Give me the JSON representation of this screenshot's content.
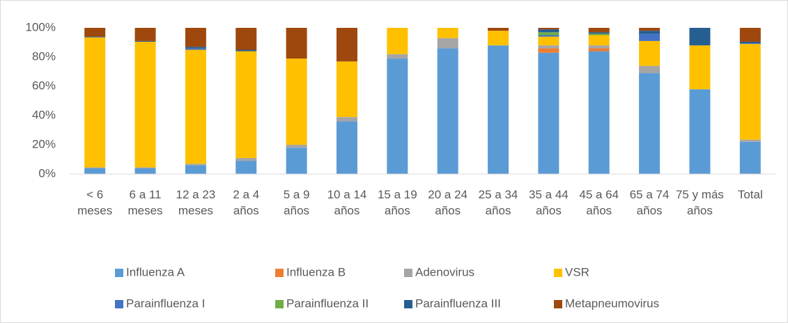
{
  "chart_data": {
    "type": "stacked_bar_100",
    "categories": [
      "< 6 meses",
      "6 a 11 meses",
      "12 a 23 meses",
      "2 a 4 años",
      "5 a 9 años",
      "10 a 14 años",
      "15 a 19 años",
      "20 a 24 años",
      "25 a 34 años",
      "35 a 44 años",
      "45 a 64 años",
      "65 a 74 años",
      "75 y más años",
      "Total"
    ],
    "series": [
      {
        "name": "Influenza A",
        "color": "#5b9bd5",
        "values": [
          4,
          4,
          6,
          9,
          18,
          36,
          79,
          86,
          88,
          83,
          84,
          69,
          58,
          22
        ]
      },
      {
        "name": "Influenza B",
        "color": "#ed7d31",
        "values": [
          0,
          0,
          0,
          0,
          0,
          0,
          0,
          0,
          0,
          3,
          2,
          0,
          0,
          0
        ]
      },
      {
        "name": "Adenovirus",
        "color": "#a5a5a5",
        "values": [
          0.5,
          0.5,
          1,
          2,
          2,
          3,
          3,
          7,
          0,
          2,
          2,
          5,
          0,
          1.5
        ]
      },
      {
        "name": "VSR",
        "color": "#ffc000",
        "values": [
          89,
          86,
          78,
          73,
          59,
          38,
          18,
          7,
          10,
          6,
          7,
          17,
          30,
          65.5
        ]
      },
      {
        "name": "Parainfluenza I",
        "color": "#4472c4",
        "values": [
          0,
          0,
          1,
          0,
          0,
          0,
          0,
          0,
          0,
          1,
          0,
          5,
          0,
          0.5
        ]
      },
      {
        "name": "Parainfluenza II",
        "color": "#70ad47",
        "values": [
          0,
          0,
          0,
          0,
          0,
          0,
          0,
          0,
          0,
          2,
          1,
          0,
          0,
          0
        ]
      },
      {
        "name": "Parainfluenza III",
        "color": "#255e91",
        "values": [
          0.5,
          0.5,
          1,
          1,
          0,
          0,
          0,
          0,
          0,
          2,
          1,
          2,
          12,
          1
        ]
      },
      {
        "name": "Metapneumovirus",
        "color": "#9e480e",
        "values": [
          6,
          9,
          13,
          15,
          21,
          23,
          0,
          0,
          2,
          1,
          3,
          2,
          0,
          9.5
        ]
      }
    ],
    "ylim": [
      0,
      100
    ],
    "yticks": [
      {
        "value": 0,
        "label": "0%"
      },
      {
        "value": 20,
        "label": "20%"
      },
      {
        "value": 40,
        "label": "40%"
      },
      {
        "value": 60,
        "label": "60%"
      },
      {
        "value": 80,
        "label": "80%"
      },
      {
        "value": 100,
        "label": "100%"
      }
    ],
    "grid": false,
    "legend": "bottom"
  }
}
